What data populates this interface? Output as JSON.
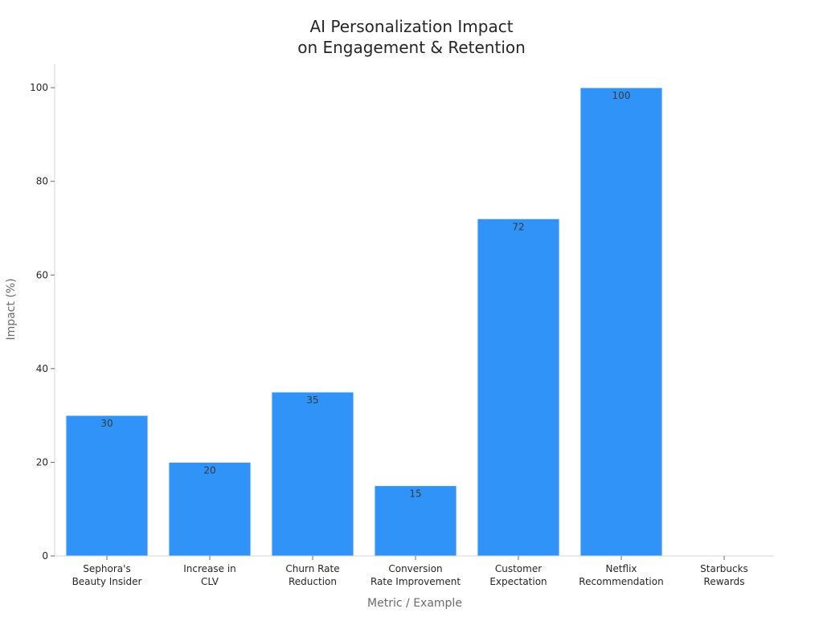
{
  "chart_data": {
    "type": "bar",
    "title": [
      "AI Personalization Impact",
      "on Engagement & Retention"
    ],
    "xlabel": "Metric / Example",
    "ylabel": "Impact (%)",
    "categories": [
      [
        "Sephora's",
        "Beauty Insider"
      ],
      [
        "Increase in",
        "CLV"
      ],
      [
        "Churn Rate",
        "Reduction"
      ],
      [
        "Conversion",
        "Rate Improvement"
      ],
      [
        "Customer",
        "Expectation"
      ],
      [
        "Netflix",
        "Recommendation"
      ],
      [
        "Starbucks",
        "Rewards"
      ]
    ],
    "values": [
      30,
      20,
      35,
      15,
      72,
      100,
      null
    ],
    "ylim": [
      0,
      105
    ],
    "yticks": [
      0,
      20,
      40,
      60,
      80,
      100
    ],
    "bar_color": "#2f93f8",
    "grid": false,
    "legend": "none"
  }
}
